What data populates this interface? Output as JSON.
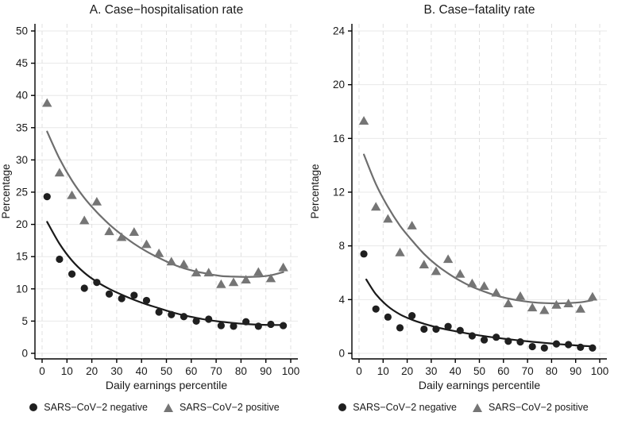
{
  "figure": {
    "background": "#ffffff",
    "text_color": "#1a1a1a",
    "axis_color": "#000000",
    "grid_color_horizontal": "#e8e8e8",
    "grid_color_vertical": "#e0e0e0"
  },
  "legend": {
    "negative_label": "SARS−CoV−2 negative",
    "positive_label": "SARS−CoV−2 positive",
    "negative_color": "#1f1f1f",
    "positive_color": "#757575",
    "negative_marker": "circle-icon",
    "positive_marker": "triangle-icon"
  },
  "chart_data": [
    {
      "type": "scatter",
      "title": "A. Case−hospitalisation rate",
      "xlabel": "Daily earnings percentile",
      "ylabel": "Percentage",
      "xlim": [
        0,
        100
      ],
      "ylim": [
        0,
        50
      ],
      "xticks": [
        0,
        10,
        20,
        30,
        40,
        50,
        60,
        70,
        80,
        90,
        100
      ],
      "yticks": [
        0,
        5,
        10,
        15,
        20,
        25,
        30,
        35,
        40,
        45,
        50
      ],
      "grid": true,
      "legend_position": "bottom",
      "x": [
        2,
        7,
        12,
        17,
        22,
        27,
        32,
        37,
        42,
        47,
        52,
        57,
        62,
        67,
        72,
        77,
        82,
        87,
        92,
        97
      ],
      "series": [
        {
          "name": "SARS−CoV−2 negative",
          "marker": "circle",
          "color": "#1f1f1f",
          "values": [
            24.3,
            14.6,
            12.3,
            10.1,
            11.0,
            9.2,
            8.5,
            9.0,
            8.2,
            6.4,
            6.0,
            5.7,
            5.0,
            5.3,
            4.3,
            4.2,
            4.9,
            4.2,
            4.5,
            4.3
          ],
          "fit_curve": {
            "color": "#1a1a1a",
            "x": [
              2,
              7,
              12,
              17,
              22,
              27,
              32,
              37,
              42,
              47,
              52,
              57,
              62,
              67,
              72,
              77,
              82,
              87,
              92,
              97
            ],
            "y": [
              20.4,
              17.0,
              14.4,
              12.5,
              11.1,
              10.0,
              9.1,
              8.3,
              7.6,
              7.0,
              6.4,
              5.9,
              5.5,
              5.15,
              4.9,
              4.7,
              4.55,
              4.45,
              4.4,
              4.4
            ]
          }
        },
        {
          "name": "SARS−CoV−2 positive",
          "marker": "triangle",
          "color": "#757575",
          "values": [
            38.8,
            28.0,
            24.5,
            20.6,
            23.5,
            18.9,
            18.0,
            18.8,
            16.9,
            15.5,
            14.2,
            13.8,
            12.5,
            12.5,
            10.7,
            11.0,
            11.4,
            12.6,
            11.6,
            13.3
          ],
          "fit_curve": {
            "color": "#6e6e6e",
            "x": [
              2,
              7,
              12,
              17,
              22,
              27,
              32,
              37,
              42,
              47,
              52,
              57,
              62,
              67,
              72,
              77,
              82,
              87,
              92,
              97
            ],
            "y": [
              34.4,
              30.2,
              26.8,
              24.1,
              21.9,
              20.0,
              18.4,
              17.0,
              15.8,
              14.8,
              13.9,
              13.2,
              12.7,
              12.3,
              12.0,
              11.9,
              11.85,
              11.9,
              12.1,
              12.6
            ]
          }
        }
      ]
    },
    {
      "type": "scatter",
      "title": "B. Case−fatality rate",
      "xlabel": "Daily earnings percentile",
      "ylabel": "Percentage",
      "xlim": [
        0,
        100
      ],
      "ylim": [
        0,
        24
      ],
      "xticks": [
        0,
        10,
        20,
        30,
        40,
        50,
        60,
        70,
        80,
        90,
        100
      ],
      "yticks": [
        0,
        4,
        8,
        12,
        16,
        20,
        24
      ],
      "grid": true,
      "legend_position": "bottom",
      "x": [
        2,
        7,
        12,
        17,
        22,
        27,
        32,
        37,
        42,
        47,
        52,
        57,
        62,
        67,
        72,
        77,
        82,
        87,
        92,
        97
      ],
      "series": [
        {
          "name": "SARS−CoV−2 negative",
          "marker": "circle",
          "color": "#1f1f1f",
          "values": [
            7.4,
            3.3,
            2.7,
            1.9,
            2.8,
            1.8,
            1.8,
            2.0,
            1.7,
            1.3,
            1.0,
            1.2,
            0.9,
            0.85,
            0.5,
            0.4,
            0.7,
            0.65,
            0.45,
            0.4
          ],
          "fit_curve": {
            "color": "#1a1a1a",
            "x": [
              3,
              7,
              12,
              17,
              22,
              27,
              32,
              37,
              42,
              47,
              52,
              57,
              62,
              67,
              72,
              77,
              82,
              87,
              92,
              97
            ],
            "y": [
              5.5,
              4.4,
              3.5,
              2.9,
              2.5,
              2.2,
              1.95,
              1.75,
              1.58,
              1.42,
              1.28,
              1.16,
              1.05,
              0.95,
              0.86,
              0.78,
              0.7,
              0.63,
              0.57,
              0.52
            ]
          }
        },
        {
          "name": "SARS−CoV−2 positive",
          "marker": "triangle",
          "color": "#757575",
          "values": [
            17.3,
            10.9,
            10.0,
            7.5,
            9.5,
            6.6,
            6.1,
            7.0,
            5.9,
            5.2,
            5.0,
            4.5,
            3.7,
            4.25,
            3.4,
            3.2,
            3.6,
            3.7,
            3.3,
            4.2
          ],
          "fit_curve": {
            "color": "#6e6e6e",
            "x": [
              2,
              7,
              12,
              17,
              22,
              27,
              32,
              37,
              42,
              47,
              52,
              57,
              62,
              67,
              72,
              77,
              82,
              87,
              92,
              97
            ],
            "y": [
              14.8,
              12.6,
              10.9,
              9.5,
              8.4,
              7.4,
              6.6,
              5.95,
              5.4,
              4.95,
              4.6,
              4.3,
              4.08,
              3.92,
              3.8,
              3.74,
              3.72,
              3.74,
              3.8,
              3.95
            ]
          }
        }
      ]
    }
  ]
}
